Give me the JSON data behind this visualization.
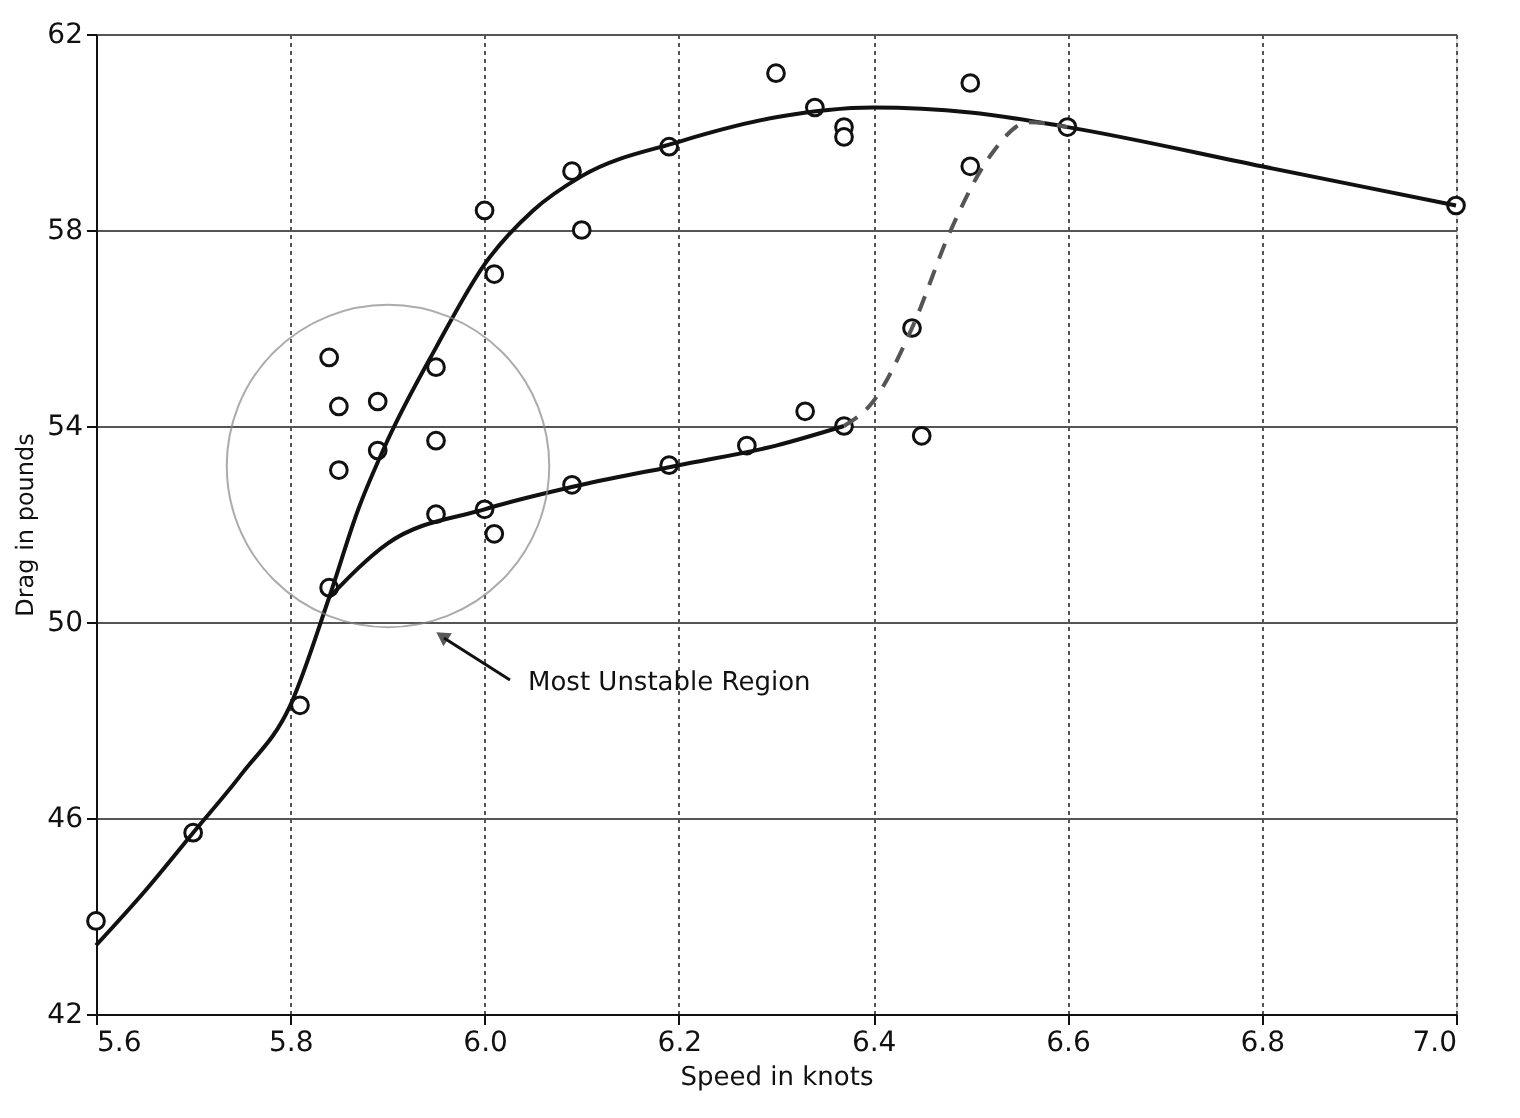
{
  "chart_data": {
    "type": "scatter",
    "xlabel": "Speed in knots",
    "ylabel": "Drag in pounds",
    "xlim": [
      5.6,
      7.0
    ],
    "xticks": [
      {
        "value": 5.6,
        "label": "5.6"
      },
      {
        "value": 5.8,
        "label": "5.8"
      },
      {
        "value": 6.0,
        "label": "6.0"
      },
      {
        "value": 6.2,
        "label": "6.2"
      },
      {
        "value": 6.4,
        "label": "6.4"
      },
      {
        "value": 6.6,
        "label": "6.6"
      },
      {
        "value": 6.8,
        "label": "6.8"
      },
      {
        "value": 7.0,
        "label": "7.0"
      }
    ],
    "ylim": [
      42,
      62
    ],
    "yticks": [
      42,
      46,
      50,
      54,
      58,
      62
    ],
    "grid": true,
    "series": [
      {
        "marker": "circle",
        "color": "#111111",
        "x": [
          5.6,
          5.7,
          5.81,
          5.84,
          5.95,
          6.0,
          6.01,
          5.84,
          5.85,
          5.89,
          5.85,
          5.89,
          5.95,
          5.95,
          6.0,
          6.01,
          6.09,
          6.1,
          6.19,
          6.09,
          6.19,
          6.27,
          6.3,
          6.34,
          6.37,
          6.37,
          6.5,
          6.5,
          6.6,
          7.0,
          6.44,
          6.33,
          6.37,
          6.45
        ],
        "values": [
          43.9,
          45.7,
          48.3,
          50.7,
          52.2,
          52.3,
          51.8,
          55.4,
          54.4,
          54.5,
          53.1,
          53.5,
          55.2,
          53.7,
          58.4,
          57.1,
          59.2,
          58.0,
          59.7,
          52.8,
          53.2,
          53.6,
          61.2,
          60.5,
          60.1,
          59.9,
          61.0,
          59.3,
          60.1,
          58.5,
          56.0,
          54.3,
          54.0,
          53.8
        ]
      },
      {
        "type": "line",
        "marker": "none",
        "color": "#111111",
        "line_style": "solid",
        "x": [
          5.6,
          5.65,
          5.7,
          5.75,
          5.8,
          5.84,
          5.87,
          5.9,
          5.95,
          6.0,
          6.05,
          6.1,
          6.2,
          6.3,
          6.4,
          6.5,
          6.6,
          6.8,
          7.0
        ],
        "values": [
          43.4,
          44.5,
          45.7,
          46.9,
          48.3,
          50.5,
          52.3,
          53.7,
          55.6,
          57.3,
          58.4,
          59.1,
          59.8,
          60.3,
          60.5,
          60.4,
          60.1,
          59.3,
          58.5
        ]
      },
      {
        "type": "line",
        "marker": "none",
        "color": "#111111",
        "line_style": "solid",
        "x": [
          5.84,
          5.9,
          6.0,
          6.1,
          6.2,
          6.3,
          6.37
        ],
        "values": [
          50.5,
          51.6,
          52.3,
          52.8,
          53.2,
          53.6,
          54.0
        ]
      },
      {
        "type": "line",
        "marker": "none",
        "color": "#555555",
        "line_style": "dashed",
        "x": [
          6.37,
          6.4,
          6.44,
          6.48,
          6.52,
          6.56,
          6.6
        ],
        "values": [
          54.0,
          54.5,
          56.0,
          58.0,
          59.5,
          60.2,
          60.1
        ]
      }
    ],
    "annotations": [
      "Most Unstable Region"
    ]
  }
}
